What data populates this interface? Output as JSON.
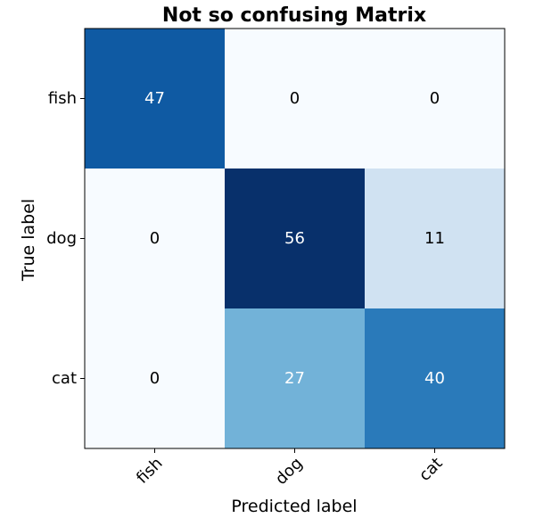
{
  "chart_data": {
    "type": "heatmap",
    "title": "Not so confusing Matrix",
    "xlabel": "Predicted label",
    "ylabel": "True label",
    "x_categories": [
      "fish",
      "dog",
      "cat"
    ],
    "y_categories": [
      "fish",
      "dog",
      "cat"
    ],
    "values": [
      [
        47,
        0,
        0
      ],
      [
        0,
        56,
        11
      ],
      [
        0,
        27,
        40
      ]
    ],
    "colormap": "Blues",
    "color_range": [
      0,
      56
    ],
    "colors": {
      "low": "#f7fbff",
      "high": "#08306b",
      "text_dark": "#000000",
      "text_light": "#ffffff"
    }
  }
}
